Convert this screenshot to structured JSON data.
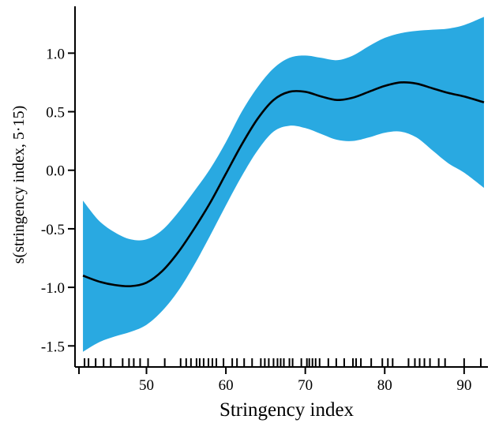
{
  "chart_data": {
    "type": "area",
    "title": "",
    "xlabel": "Stringency index",
    "ylabel": "s(stringency index, 5·15)",
    "xlim": [
      41,
      93
    ],
    "ylim": [
      -1.68,
      1.4
    ],
    "x_ticks": [
      {
        "value": 50,
        "label": "50"
      },
      {
        "value": 60,
        "label": "60"
      },
      {
        "value": 70,
        "label": "70"
      },
      {
        "value": 80,
        "label": "80"
      },
      {
        "value": 90,
        "label": "90"
      }
    ],
    "y_ticks": [
      {
        "value": 1.0,
        "label": "1.0"
      },
      {
        "value": 0.5,
        "label": "0.5"
      },
      {
        "value": 0.0,
        "label": "0.0"
      },
      {
        "value": -0.5,
        "label": "-0.5"
      },
      {
        "value": -1.0,
        "label": "-1.0"
      },
      {
        "value": -1.5,
        "label": "-1.5"
      }
    ],
    "grid": false,
    "band_color": "#29a9e1",
    "line_color": "#000000",
    "series": [
      {
        "x": [
          42,
          44,
          46,
          48,
          50,
          52,
          54,
          56,
          58,
          60,
          62,
          64,
          66,
          68,
          70,
          72,
          74,
          76,
          78,
          80,
          82,
          84,
          86,
          88,
          90,
          92.5
        ],
        "fit": [
          -0.9,
          -0.95,
          -0.98,
          -0.99,
          -0.96,
          -0.86,
          -0.7,
          -0.5,
          -0.28,
          -0.03,
          0.22,
          0.44,
          0.6,
          0.67,
          0.67,
          0.63,
          0.6,
          0.62,
          0.67,
          0.72,
          0.75,
          0.74,
          0.7,
          0.66,
          0.63,
          0.58
        ],
        "lower": [
          -1.55,
          -1.47,
          -1.42,
          -1.38,
          -1.32,
          -1.2,
          -1.03,
          -0.81,
          -0.56,
          -0.3,
          -0.05,
          0.17,
          0.33,
          0.38,
          0.36,
          0.31,
          0.26,
          0.25,
          0.28,
          0.32,
          0.33,
          0.28,
          0.17,
          0.06,
          -0.02,
          -0.15
        ],
        "upper": [
          -0.26,
          -0.43,
          -0.53,
          -0.59,
          -0.59,
          -0.51,
          -0.36,
          -0.18,
          0.01,
          0.24,
          0.5,
          0.71,
          0.87,
          0.96,
          0.98,
          0.96,
          0.94,
          0.98,
          1.06,
          1.13,
          1.17,
          1.19,
          1.2,
          1.21,
          1.24,
          1.31
        ]
      }
    ],
    "rug": [
      42.2,
      42.7,
      43.6,
      44.6,
      45.5,
      47.0,
      47.8,
      48.4,
      49.2,
      50.2,
      52.3,
      54.3,
      55.0,
      55.6,
      56.3,
      56.7,
      57.2,
      57.8,
      58.3,
      58.8,
      59.7,
      60.8,
      61.4,
      62.3,
      63.3,
      64.4,
      64.9,
      65.4,
      66.0,
      66.5,
      66.9,
      67.3,
      68.0,
      68.4,
      69.5,
      70.2,
      70.5,
      70.9,
      71.3,
      71.8,
      72.9,
      73.9,
      74.9,
      76.0,
      76.4,
      77.0,
      78.3,
      79.7,
      80.4,
      81.0,
      83.0,
      83.8,
      84.4,
      85.0,
      85.7,
      86.8,
      87.6,
      90.0,
      92.1
    ]
  }
}
